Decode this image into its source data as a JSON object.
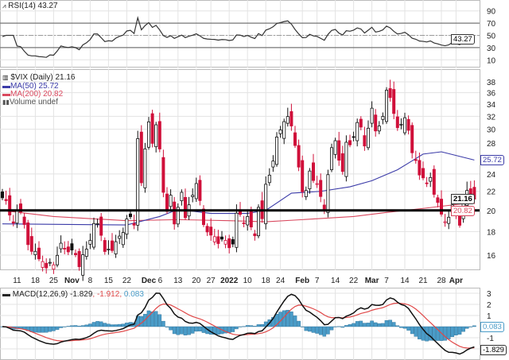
{
  "rsi_panel": {
    "title": "RSI(14) 43.27",
    "value_tag": "43.27",
    "axis_ticks": [
      90,
      70,
      50,
      30,
      10
    ],
    "overbought": 70,
    "oversold": 30
  },
  "price_panel": {
    "title": "$VIX (Daily) 21.16",
    "legend": [
      {
        "label": "MA(50) 25.72",
        "color": "#3b3ba8"
      },
      {
        "label": "MA(200) 20.82",
        "color": "#d9485e"
      },
      {
        "label": "Volume undef",
        "color": "#555555"
      }
    ],
    "last_tag": "21.16",
    "ma50_tag": "25.72",
    "ma200_tag": "20.82",
    "axis_ticks": [
      38,
      36,
      34,
      32,
      30,
      28,
      24,
      22,
      20,
      18,
      16
    ],
    "axis_tick_labels_shown": [
      "38",
      "36",
      "34",
      "32",
      "30",
      "28",
      "24",
      "22",
      "20",
      "18",
      "16"
    ]
  },
  "macd_panel": {
    "title": "MACD(12,26,9)",
    "macd": "-1.829",
    "signal": "-1.912",
    "hist": "0.083",
    "hist_tag": "0.083",
    "macd_tag": "-1.829",
    "axis_ticks": [
      "3",
      "2",
      "1",
      "-1"
    ]
  },
  "colors": {
    "down": "#d0103a",
    "up": "#111111",
    "ma50": "#3b3ba8",
    "ma200": "#d9485e",
    "hist": "#4a9cc8",
    "signal": "#e04848",
    "macd": "#111111"
  },
  "chart_data": {
    "type": "candlestick",
    "scale": "log",
    "ylim": [
      15,
      39
    ],
    "grid": true,
    "horizontal_line": 20,
    "x_ticks": [
      {
        "label": "11",
        "date": "2021-10-11",
        "bold": false
      },
      {
        "label": "18",
        "date": "2021-10-18",
        "bold": false
      },
      {
        "label": "25",
        "date": "2021-10-25",
        "bold": false
      },
      {
        "label": "Nov",
        "date": "2021-11-01",
        "bold": true
      },
      {
        "label": "8",
        "date": "2021-11-08",
        "bold": false
      },
      {
        "label": "15",
        "date": "2021-11-15",
        "bold": false
      },
      {
        "label": "22",
        "date": "2021-11-22",
        "bold": false
      },
      {
        "label": "Dec",
        "date": "2021-12-01",
        "bold": true
      },
      {
        "label": "6",
        "date": "2021-12-06",
        "bold": false
      },
      {
        "label": "13",
        "date": "2021-12-13",
        "bold": false
      },
      {
        "label": "20",
        "date": "2021-12-20",
        "bold": false
      },
      {
        "label": "27",
        "date": "2021-12-27",
        "bold": false
      },
      {
        "label": "2022",
        "date": "2022-01-03",
        "bold": true
      },
      {
        "label": "10",
        "date": "2022-01-10",
        "bold": false
      },
      {
        "label": "18",
        "date": "2022-01-18",
        "bold": false
      },
      {
        "label": "24",
        "date": "2022-01-24",
        "bold": false
      },
      {
        "label": "Feb",
        "date": "2022-02-01",
        "bold": true
      },
      {
        "label": "7",
        "date": "2022-02-07",
        "bold": false
      },
      {
        "label": "14",
        "date": "2022-02-14",
        "bold": false
      },
      {
        "label": "22",
        "date": "2022-02-22",
        "bold": false
      },
      {
        "label": "Mar",
        "date": "2022-03-01",
        "bold": true
      },
      {
        "label": "7",
        "date": "2022-03-07",
        "bold": false
      },
      {
        "label": "14",
        "date": "2022-03-14",
        "bold": false
      },
      {
        "label": "21",
        "date": "2022-03-21",
        "bold": false
      },
      {
        "label": "28",
        "date": "2022-03-28",
        "bold": false
      },
      {
        "label": "Apr",
        "date": "2022-04-01",
        "bold": true
      }
    ],
    "dates": [
      "2021-10-05",
      "2021-10-06",
      "2021-10-07",
      "2021-10-08",
      "2021-10-11",
      "2021-10-12",
      "2021-10-13",
      "2021-10-14",
      "2021-10-15",
      "2021-10-18",
      "2021-10-19",
      "2021-10-20",
      "2021-10-21",
      "2021-10-22",
      "2021-10-25",
      "2021-10-26",
      "2021-10-27",
      "2021-10-28",
      "2021-10-29",
      "2021-11-01",
      "2021-11-02",
      "2021-11-03",
      "2021-11-04",
      "2021-11-05",
      "2021-11-08",
      "2021-11-09",
      "2021-11-10",
      "2021-11-11",
      "2021-11-12",
      "2021-11-15",
      "2021-11-16",
      "2021-11-17",
      "2021-11-18",
      "2021-11-19",
      "2021-11-22",
      "2021-11-23",
      "2021-11-24",
      "2021-11-26",
      "2021-11-29",
      "2021-11-30",
      "2021-12-01",
      "2021-12-02",
      "2021-12-03",
      "2021-12-06",
      "2021-12-07",
      "2021-12-08",
      "2021-12-09",
      "2021-12-10",
      "2021-12-13",
      "2021-12-14",
      "2021-12-15",
      "2021-12-16",
      "2021-12-17",
      "2021-12-20",
      "2021-12-21",
      "2021-12-22",
      "2021-12-23",
      "2021-12-27",
      "2021-12-28",
      "2021-12-29",
      "2021-12-30",
      "2021-12-31",
      "2022-01-03",
      "2022-01-04",
      "2022-01-05",
      "2022-01-06",
      "2022-01-07",
      "2022-01-10",
      "2022-01-11",
      "2022-01-12",
      "2022-01-13",
      "2022-01-14",
      "2022-01-18",
      "2022-01-19",
      "2022-01-20",
      "2022-01-21",
      "2022-01-24",
      "2022-01-25",
      "2022-01-26",
      "2022-01-27",
      "2022-01-28",
      "2022-01-31",
      "2022-02-01",
      "2022-02-02",
      "2022-02-03",
      "2022-02-04",
      "2022-02-07",
      "2022-02-08",
      "2022-02-09",
      "2022-02-10",
      "2022-02-11",
      "2022-02-14",
      "2022-02-15",
      "2022-02-16",
      "2022-02-17",
      "2022-02-18",
      "2022-02-22",
      "2022-02-23",
      "2022-02-24",
      "2022-02-25",
      "2022-02-28",
      "2022-03-01",
      "2022-03-02",
      "2022-03-03",
      "2022-03-04",
      "2022-03-07",
      "2022-03-08",
      "2022-03-09",
      "2022-03-10",
      "2022-03-11",
      "2022-03-14",
      "2022-03-15",
      "2022-03-16",
      "2022-03-17",
      "2022-03-18",
      "2022-03-21",
      "2022-03-22",
      "2022-03-23",
      "2022-03-24",
      "2022-03-25",
      "2022-03-28",
      "2022-03-29",
      "2022-03-30",
      "2022-03-31",
      "2022-04-01",
      "2022-04-04",
      "2022-04-05",
      "2022-04-06",
      "2022-04-07",
      "2022-04-08"
    ],
    "close": [
      21.3,
      21.0,
      19.54,
      18.77,
      20.0,
      19.85,
      18.64,
      16.86,
      16.3,
      16.3,
      15.7,
      15.49,
      15.01,
      15.43,
      15.24,
      15.98,
      16.98,
      16.53,
      16.26,
      16.41,
      16.03,
      15.1,
      16.03,
      16.48,
      17.22,
      18.73,
      18.73,
      17.66,
      16.29,
      16.49,
      16.37,
      17.11,
      17.59,
      17.91,
      19.17,
      19.38,
      18.58,
      28.62,
      22.96,
      27.19,
      31.12,
      27.95,
      30.67,
      27.18,
      21.89,
      19.9,
      21.58,
      18.69,
      20.31,
      21.89,
      19.29,
      20.57,
      21.57,
      22.87,
      21.01,
      18.63,
      17.96,
      17.68,
      17.54,
      16.95,
      17.33,
      17.22,
      16.6,
      16.91,
      19.73,
      19.61,
      18.76,
      19.4,
      18.41,
      17.62,
      20.31,
      19.19,
      22.79,
      23.85,
      25.59,
      28.85,
      29.9,
      31.16,
      31.96,
      30.49,
      27.66,
      24.83,
      21.96,
      22.09,
      24.35,
      23.22,
      22.86,
      21.44,
      19.96,
      23.91,
      27.36,
      28.33,
      25.7,
      24.29,
      28.11,
      27.75,
      28.81,
      31.02,
      30.32,
      27.59,
      30.15,
      33.32,
      29.74,
      30.48,
      31.98,
      36.45,
      35.13,
      32.45,
      30.23,
      30.75,
      31.77,
      29.83,
      26.67,
      25.67,
      23.87,
      23.53,
      22.94,
      23.57,
      21.67,
      20.81,
      19.63,
      18.9,
      19.33,
      20.56,
      19.63,
      18.57,
      21.03,
      22.1,
      21.55,
      21.16
    ],
    "ma50": [
      {
        "date": "2021-10-05",
        "v": 18.7
      },
      {
        "date": "2021-11-22",
        "v": 18.6
      },
      {
        "date": "2021-12-06",
        "v": 19.4
      },
      {
        "date": "2021-12-13",
        "v": 20.1
      },
      {
        "date": "2021-12-27",
        "v": 19.7
      },
      {
        "date": "2022-01-10",
        "v": 19.7
      },
      {
        "date": "2022-01-18",
        "v": 20.0
      },
      {
        "date": "2022-01-27",
        "v": 21.8
      },
      {
        "date": "2022-02-08",
        "v": 22.0
      },
      {
        "date": "2022-02-18",
        "v": 22.5
      },
      {
        "date": "2022-03-01",
        "v": 23.2
      },
      {
        "date": "2022-03-10",
        "v": 24.5
      },
      {
        "date": "2022-03-21",
        "v": 26.5
      },
      {
        "date": "2022-03-28",
        "v": 26.8
      },
      {
        "date": "2022-04-08",
        "v": 25.72
      }
    ],
    "ma200": [
      {
        "date": "2021-10-05",
        "v": 20.0
      },
      {
        "date": "2021-10-25",
        "v": 19.4
      },
      {
        "date": "2021-11-22",
        "v": 19.0
      },
      {
        "date": "2021-12-13",
        "v": 19.1
      },
      {
        "date": "2022-01-03",
        "v": 19.0
      },
      {
        "date": "2022-01-18",
        "v": 18.9
      },
      {
        "date": "2022-02-01",
        "v": 19.1
      },
      {
        "date": "2022-02-22",
        "v": 19.4
      },
      {
        "date": "2022-03-07",
        "v": 19.8
      },
      {
        "date": "2022-03-21",
        "v": 20.2
      },
      {
        "date": "2022-04-08",
        "v": 20.82
      }
    ]
  }
}
